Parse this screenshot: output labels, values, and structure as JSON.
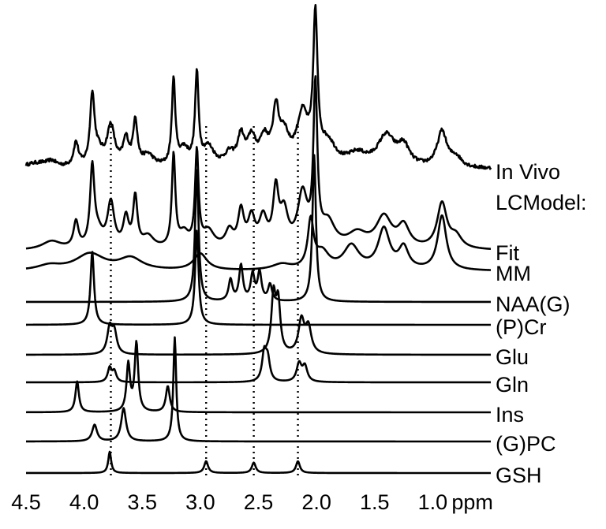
{
  "chart_data": {
    "type": "line",
    "title": "",
    "xlabel": "",
    "ylabel": "",
    "x_unit": "ppm",
    "xlim": [
      4.5,
      0.5
    ],
    "x_reversed": true,
    "x_ticks": [
      {
        "value": 4.5,
        "label": "4.5"
      },
      {
        "value": 4.0,
        "label": "4.0"
      },
      {
        "value": 3.5,
        "label": "3.5"
      },
      {
        "value": 3.0,
        "label": "3.0"
      },
      {
        "value": 2.5,
        "label": "2.5"
      },
      {
        "value": 2.0,
        "label": "2.0"
      },
      {
        "value": 1.5,
        "label": "1.5"
      },
      {
        "value": 1.0,
        "label": "1.0"
      }
    ],
    "tick_unit_label": "ppm",
    "reference_lines_ppm": [
      3.77,
      2.95,
      2.54,
      2.16
    ],
    "section_label": "LCModel:",
    "series": [
      {
        "name": "In Vivo",
        "noise": 0.035,
        "peaks": [
          [
            4.4,
            0.12,
            0.15
          ],
          [
            4.28,
            0.1,
            0.05
          ],
          [
            4.07,
            0.5,
            0.025
          ],
          [
            3.93,
            1.45,
            0.022
          ],
          [
            3.88,
            0.3,
            0.05
          ],
          [
            3.77,
            0.85,
            0.04
          ],
          [
            3.64,
            0.55,
            0.03
          ],
          [
            3.56,
            0.95,
            0.022
          ],
          [
            3.45,
            0.25,
            0.06
          ],
          [
            3.23,
            1.8,
            0.018
          ],
          [
            3.14,
            0.35,
            0.05
          ],
          [
            3.03,
            1.9,
            0.018
          ],
          [
            2.93,
            0.4,
            0.06
          ],
          [
            2.75,
            0.25,
            0.05
          ],
          [
            2.65,
            0.6,
            0.035
          ],
          [
            2.56,
            0.55,
            0.04
          ],
          [
            2.45,
            0.55,
            0.05
          ],
          [
            2.35,
            1.05,
            0.03
          ],
          [
            2.28,
            0.6,
            0.05
          ],
          [
            2.12,
            1.05,
            0.06
          ],
          [
            2.01,
            3.0,
            0.022
          ],
          [
            1.9,
            0.45,
            0.08
          ],
          [
            1.65,
            0.25,
            0.1
          ],
          [
            1.4,
            0.65,
            0.09
          ],
          [
            1.25,
            0.4,
            0.06
          ],
          [
            0.92,
            0.75,
            0.05
          ],
          [
            0.8,
            0.2,
            0.06
          ]
        ]
      },
      {
        "name": "Fit",
        "noise": 0,
        "peaks": [
          [
            4.28,
            0.18,
            0.1
          ],
          [
            4.07,
            0.55,
            0.025
          ],
          [
            3.93,
            1.65,
            0.022
          ],
          [
            3.88,
            0.3,
            0.05
          ],
          [
            3.77,
            0.95,
            0.035
          ],
          [
            3.64,
            0.62,
            0.028
          ],
          [
            3.56,
            1.05,
            0.022
          ],
          [
            3.45,
            0.25,
            0.06
          ],
          [
            3.23,
            1.95,
            0.018
          ],
          [
            3.14,
            0.3,
            0.05
          ],
          [
            3.03,
            2.0,
            0.018
          ],
          [
            2.93,
            0.35,
            0.06
          ],
          [
            2.75,
            0.35,
            0.04
          ],
          [
            2.65,
            0.75,
            0.03
          ],
          [
            2.56,
            0.6,
            0.035
          ],
          [
            2.46,
            0.6,
            0.04
          ],
          [
            2.35,
            1.15,
            0.028
          ],
          [
            2.28,
            0.7,
            0.04
          ],
          [
            2.12,
            1.1,
            0.05
          ],
          [
            2.01,
            3.3,
            0.02
          ],
          [
            1.9,
            0.5,
            0.07
          ],
          [
            1.65,
            0.3,
            0.1
          ],
          [
            1.42,
            0.65,
            0.08
          ],
          [
            1.25,
            0.45,
            0.06
          ],
          [
            0.92,
            0.95,
            0.05
          ],
          [
            0.8,
            0.25,
            0.06
          ]
        ]
      },
      {
        "name": "MM",
        "noise": 0,
        "peaks": [
          [
            4.3,
            0.1,
            0.12
          ],
          [
            3.95,
            0.35,
            0.15
          ],
          [
            3.6,
            0.25,
            0.12
          ],
          [
            3.0,
            0.35,
            0.07
          ],
          [
            2.3,
            0.12,
            0.1
          ],
          [
            2.05,
            1.0,
            0.03
          ],
          [
            1.95,
            0.35,
            0.07
          ],
          [
            1.7,
            0.5,
            0.08
          ],
          [
            1.42,
            0.85,
            0.06
          ],
          [
            1.25,
            0.45,
            0.05
          ],
          [
            0.92,
            1.15,
            0.045
          ]
        ]
      },
      {
        "name": "NAA(G)",
        "noise": 0,
        "peaks": [
          [
            3.03,
            2.8,
            0.018
          ],
          [
            2.74,
            0.45,
            0.02
          ],
          [
            2.65,
            0.75,
            0.02
          ],
          [
            2.55,
            0.55,
            0.02
          ],
          [
            2.49,
            0.6,
            0.02
          ],
          [
            2.4,
            0.35,
            0.02
          ],
          [
            2.02,
            3.1,
            0.018
          ]
        ]
      },
      {
        "name": "(P)Cr",
        "noise": 0,
        "peaks": [
          [
            3.93,
            1.55,
            0.018
          ],
          [
            3.03,
            2.0,
            0.018
          ]
        ]
      },
      {
        "name": "Glu",
        "noise": 0,
        "peaks": [
          [
            3.78,
            0.55,
            0.025
          ],
          [
            3.74,
            0.45,
            0.025
          ],
          [
            2.37,
            1.2,
            0.022
          ],
          [
            2.33,
            1.05,
            0.022
          ],
          [
            2.13,
            0.7,
            0.03
          ],
          [
            2.07,
            0.55,
            0.03
          ]
        ]
      },
      {
        "name": "Gln",
        "noise": 0,
        "peaks": [
          [
            3.78,
            0.3,
            0.02
          ],
          [
            3.74,
            0.22,
            0.02
          ],
          [
            2.45,
            0.6,
            0.022
          ],
          [
            2.42,
            0.45,
            0.022
          ],
          [
            2.15,
            0.38,
            0.025
          ],
          [
            2.1,
            0.32,
            0.025
          ]
        ]
      },
      {
        "name": "Ins",
        "noise": 0,
        "peaks": [
          [
            4.06,
            0.65,
            0.018
          ],
          [
            3.62,
            1.0,
            0.018
          ],
          [
            3.55,
            1.45,
            0.018
          ],
          [
            3.28,
            0.55,
            0.02
          ]
        ]
      },
      {
        "name": "(G)PC",
        "noise": 0,
        "peaks": [
          [
            3.91,
            0.35,
            0.025
          ],
          [
            3.66,
            0.7,
            0.025
          ],
          [
            3.22,
            2.2,
            0.015
          ]
        ]
      },
      {
        "name": "GSH",
        "noise": 0,
        "peaks": [
          [
            3.78,
            0.45,
            0.015
          ],
          [
            2.95,
            0.25,
            0.02
          ],
          [
            2.54,
            0.22,
            0.02
          ],
          [
            2.16,
            0.25,
            0.02
          ]
        ]
      }
    ]
  }
}
